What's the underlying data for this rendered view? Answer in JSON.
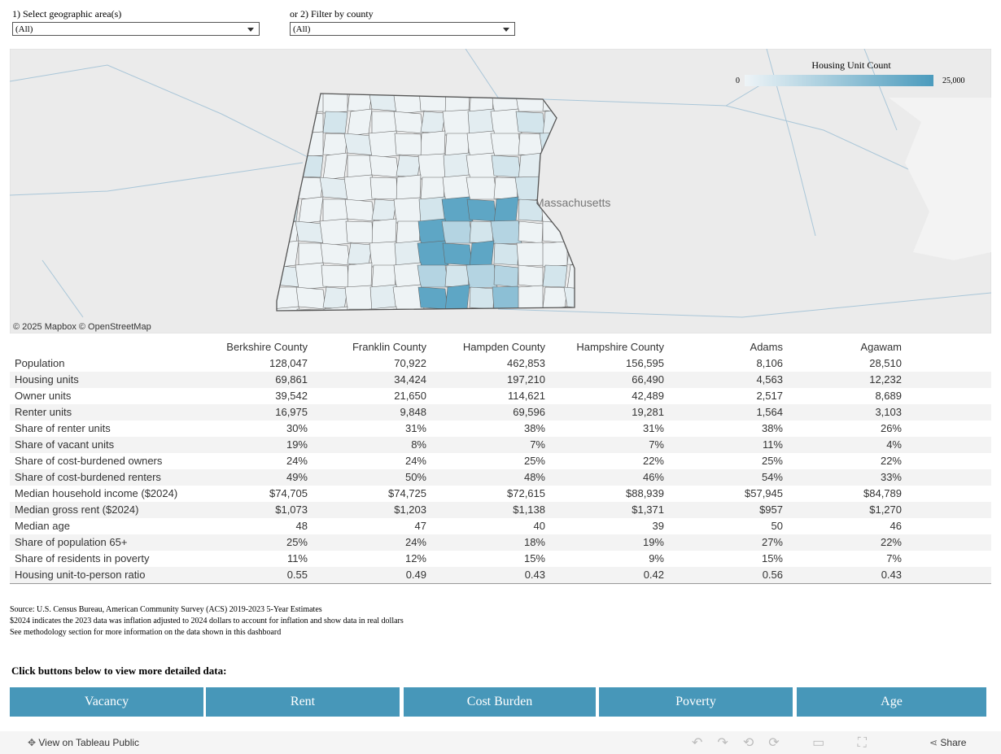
{
  "filters": [
    {
      "label": "1) Select geographic area(s)",
      "value": "(All)"
    },
    {
      "label": "or 2) Filter by county",
      "value": "(All)"
    }
  ],
  "map": {
    "place_label": "Massachusetts",
    "legend": {
      "title": "Housing Unit Count",
      "min": "0",
      "max": "25,000"
    },
    "attribution": "© 2025 Mapbox © OpenStreetMap"
  },
  "table": {
    "columns": [
      "Berkshire County",
      "Franklin County",
      "Hampden County",
      "Hampshire County",
      "Adams",
      "Agawam"
    ],
    "rows": [
      {
        "label": "Population",
        "values": [
          "128,047",
          "70,922",
          "462,853",
          "156,595",
          "8,106",
          "28,510"
        ]
      },
      {
        "label": "Housing units",
        "values": [
          "69,861",
          "34,424",
          "197,210",
          "66,490",
          "4,563",
          "12,232"
        ]
      },
      {
        "label": "Owner units",
        "values": [
          "39,542",
          "21,650",
          "114,621",
          "42,489",
          "2,517",
          "8,689"
        ]
      },
      {
        "label": "Renter units",
        "values": [
          "16,975",
          "9,848",
          "69,596",
          "19,281",
          "1,564",
          "3,103"
        ]
      },
      {
        "label": "Share of renter units",
        "values": [
          "30%",
          "31%",
          "38%",
          "31%",
          "38%",
          "26%"
        ]
      },
      {
        "label": "Share of vacant units",
        "values": [
          "19%",
          "8%",
          "7%",
          "7%",
          "11%",
          "4%"
        ]
      },
      {
        "label": "Share of cost-burdened owners",
        "values": [
          "24%",
          "24%",
          "25%",
          "22%",
          "25%",
          "22%"
        ]
      },
      {
        "label": "Share of cost-burdened renters",
        "values": [
          "49%",
          "50%",
          "48%",
          "46%",
          "54%",
          "33%"
        ]
      },
      {
        "label": "Median household income ($2024)",
        "values": [
          "$74,705",
          "$74,725",
          "$72,615",
          "$88,939",
          "$57,945",
          "$84,789"
        ]
      },
      {
        "label": "Median gross rent ($2024)",
        "values": [
          "$1,073",
          "$1,203",
          "$1,138",
          "$1,371",
          "$957",
          "$1,270"
        ]
      },
      {
        "label": "Median age",
        "values": [
          "48",
          "47",
          "40",
          "39",
          "50",
          "46"
        ]
      },
      {
        "label": "Share of population 65+",
        "values": [
          "25%",
          "24%",
          "18%",
          "19%",
          "27%",
          "22%"
        ]
      },
      {
        "label": "Share of residents in poverty",
        "values": [
          "11%",
          "12%",
          "15%",
          "9%",
          "15%",
          "7%"
        ]
      },
      {
        "label": "Housing unit-to-person ratio",
        "values": [
          "0.55",
          "0.49",
          "0.43",
          "0.42",
          "0.56",
          "0.43"
        ]
      }
    ]
  },
  "notes": [
    "Source: U.S. Census Bureau, American Community Survey (ACS) 2019-2023 5-Year Estimates",
    "$2024 indicates the 2023 data was inflation adjusted to 2024 dollars to account for inflation and show data in real dollars",
    "See methodology section for more information on the data shown in this dashboard"
  ],
  "prompt": "Click buttons below to view more detailed data:",
  "buttons": [
    "Vacancy",
    "Rent",
    "Cost Burden",
    "Poverty",
    "Age"
  ],
  "toolbar": {
    "view": "View on Tableau Public",
    "share": "Share"
  }
}
